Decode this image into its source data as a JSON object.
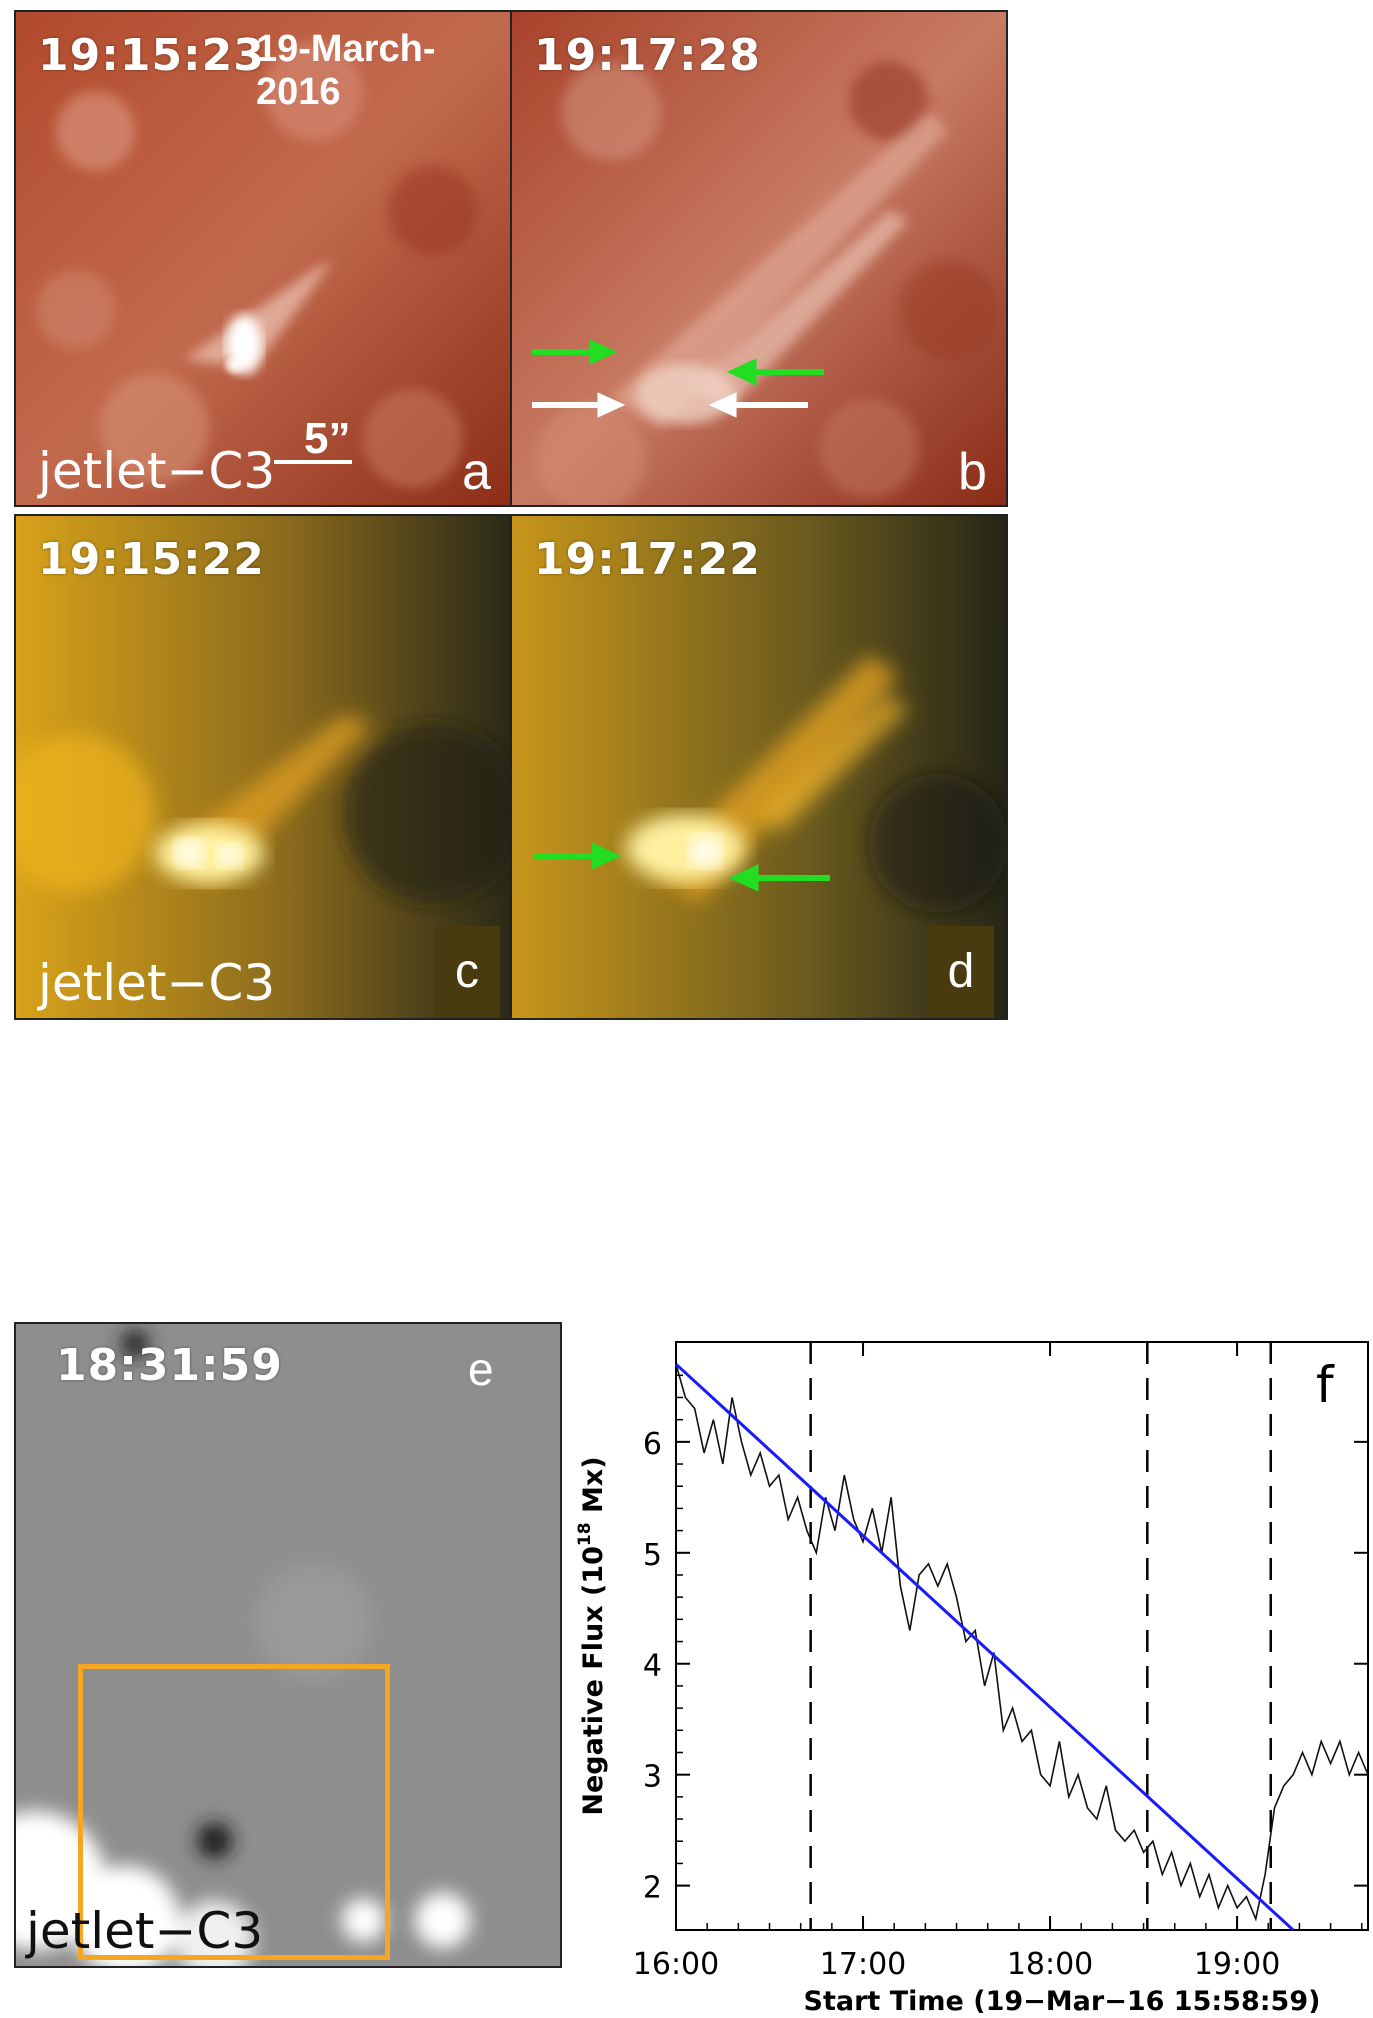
{
  "panels": {
    "a": {
      "timestamp": "19:15:23",
      "date": "19-March-2016",
      "jet_label": "jetlet−C3",
      "scale_text": "5”",
      "letter": "a",
      "palette": "aia-171-red"
    },
    "b": {
      "timestamp": "19:17:28",
      "letter": "b",
      "palette": "aia-171-red"
    },
    "c": {
      "timestamp": "19:15:22",
      "jet_label": "jetlet−C3",
      "letter": "c",
      "palette": "aia-193-yellow"
    },
    "d": {
      "timestamp": "19:17:22",
      "letter": "d",
      "palette": "aia-193-yellow"
    },
    "e": {
      "timestamp": "18:31:59",
      "jet_label": "jetlet−C3",
      "letter": "e",
      "palette": "magnetogram-gray",
      "box_color": "#f5a623"
    },
    "f": {
      "letter": "f"
    }
  },
  "colors": {
    "arrow_green": "#22dd22",
    "arrow_white": "#ffffff",
    "fit_line": "#1a1aff"
  },
  "chart_data": {
    "type": "line",
    "ylabel": "Negative Flux (10^18 Mx)",
    "ylabel_prefix": "Negative Flux (10",
    "ylabel_exp": "18",
    "ylabel_suffix": " Mx)",
    "xlabel": "Start Time (19−Mar−16 15:58:59)",
    "x_ticks": [
      "16:00",
      "17:00",
      "18:00",
      "19:00"
    ],
    "y_ticks": [
      "2",
      "3",
      "4",
      "5",
      "6"
    ],
    "xlim_hours": [
      16.0,
      19.7
    ],
    "ylim": [
      1.6,
      6.9
    ],
    "dashed_lines_x_hours": [
      16.72,
      18.52,
      19.18
    ],
    "fit_line": {
      "x": [
        16.0,
        19.3
      ],
      "y": [
        6.7,
        1.6
      ]
    },
    "series": [
      {
        "values_x": [
          16.0,
          16.05,
          16.1,
          16.15,
          16.2,
          16.25,
          16.3,
          16.35,
          16.4,
          16.45,
          16.5,
          16.55,
          16.6,
          16.65,
          16.7,
          16.75,
          16.8,
          16.85,
          16.9,
          16.95,
          17.0,
          17.05,
          17.1,
          17.15,
          17.2,
          17.25,
          17.3,
          17.35,
          17.4,
          17.45,
          17.5,
          17.55,
          17.6,
          17.65,
          17.7,
          17.75,
          17.8,
          17.85,
          17.9,
          17.95,
          18.0,
          18.05,
          18.1,
          18.15,
          18.2,
          18.25,
          18.3,
          18.35,
          18.4,
          18.45,
          18.5,
          18.55,
          18.6,
          18.65,
          18.7,
          18.75,
          18.8,
          18.85,
          18.9,
          18.95,
          19.0,
          19.05,
          19.1,
          19.15,
          19.2,
          19.25,
          19.3,
          19.35,
          19.4,
          19.45,
          19.5,
          19.55,
          19.6,
          19.65,
          19.7
        ],
        "values_y": [
          6.7,
          6.4,
          6.3,
          5.9,
          6.2,
          5.8,
          6.4,
          6.0,
          5.7,
          5.9,
          5.6,
          5.7,
          5.3,
          5.5,
          5.2,
          5.0,
          5.5,
          5.2,
          5.7,
          5.3,
          5.1,
          5.4,
          5.0,
          5.5,
          4.7,
          4.3,
          4.8,
          4.9,
          4.7,
          4.9,
          4.6,
          4.2,
          4.3,
          3.8,
          4.1,
          3.4,
          3.6,
          3.3,
          3.4,
          3.0,
          2.9,
          3.3,
          2.8,
          3.0,
          2.7,
          2.6,
          2.9,
          2.5,
          2.4,
          2.5,
          2.3,
          2.4,
          2.1,
          2.3,
          2.0,
          2.2,
          1.9,
          2.1,
          1.8,
          2.0,
          1.8,
          1.9,
          1.7,
          2.1,
          2.7,
          2.9,
          3.0,
          3.2,
          3.0,
          3.3,
          3.1,
          3.3,
          3.0,
          3.2,
          3.0
        ]
      }
    ]
  }
}
